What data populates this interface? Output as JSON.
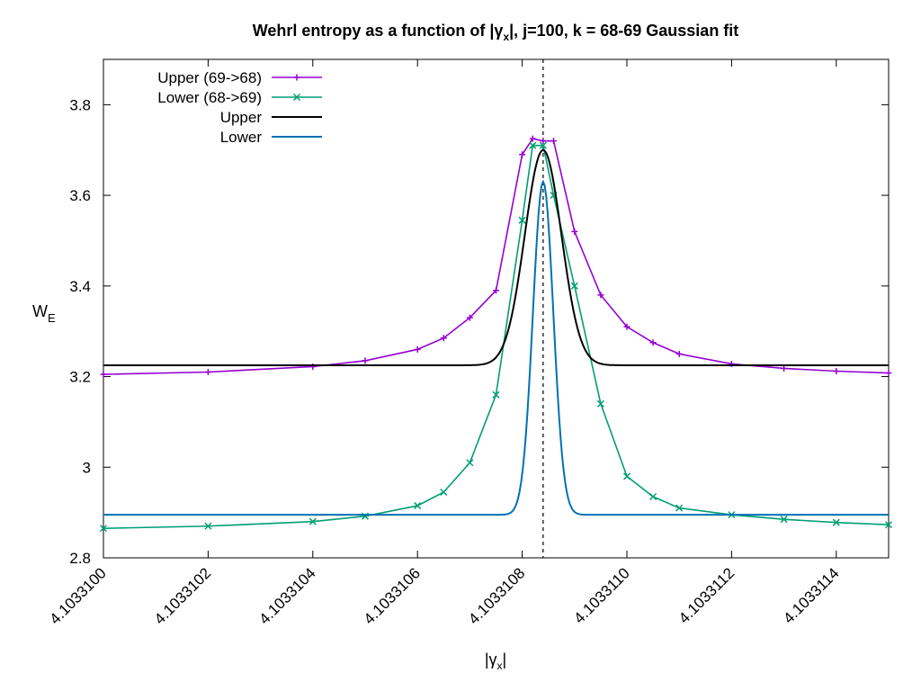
{
  "chart_data": {
    "type": "line",
    "title": {
      "prefix": "Wehrl entropy as a function of |",
      "sym": "γ",
      "sub": "x",
      "suffix": "|,  j=100, k = 68-69 Gaussian fit"
    },
    "xlabel": {
      "prefix": "|",
      "sym": "γ",
      "sub": "x",
      "suffix": "|"
    },
    "ylabel": {
      "main": "W",
      "sub": "E"
    },
    "xlim": [
      4.10331,
      4.1033115
    ],
    "ylim": [
      2.8,
      3.9
    ],
    "x_ticks": [
      4.10331,
      4.1033102,
      4.1033104,
      4.1033106,
      4.1033108,
      4.103311,
      4.1033112,
      4.1033114
    ],
    "x_tick_labels": [
      "4.1033100",
      "4.1033102",
      "4.1033104",
      "4.1033106",
      "4.1033108",
      "4.1033110",
      "4.1033112",
      "4.1033114"
    ],
    "y_ticks": [
      2.8,
      3.0,
      3.2,
      3.4,
      3.6,
      3.8
    ],
    "y_tick_labels": [
      "2.8",
      "3",
      "3.2",
      "3.4",
      "3.6",
      "3.8"
    ],
    "vertical_line": {
      "x": 4.10331084,
      "style": "dashed",
      "color": "#000000"
    },
    "legend": {
      "position": "top-left"
    },
    "grid": false,
    "series": [
      {
        "name": "Upper (69->68)",
        "kind": "points",
        "marker": "plus",
        "color": "#9400d3",
        "x": [
          4.10331,
          4.1033102,
          4.1033104,
          4.1033105,
          4.1033106,
          4.10331065,
          4.1033107,
          4.10331075,
          4.1033108,
          4.10331082,
          4.10331084,
          4.10331086,
          4.1033109,
          4.10331095,
          4.103311,
          4.10331105,
          4.1033111,
          4.1033112,
          4.1033113,
          4.1033114,
          4.1033115
        ],
        "y": [
          3.205,
          3.21,
          3.222,
          3.235,
          3.26,
          3.285,
          3.33,
          3.39,
          3.69,
          3.725,
          3.72,
          3.72,
          3.52,
          3.38,
          3.31,
          3.275,
          3.25,
          3.228,
          3.218,
          3.212,
          3.208
        ]
      },
      {
        "name": "Lower (68->69)",
        "kind": "points",
        "marker": "cross",
        "color": "#009e73",
        "x": [
          4.10331,
          4.1033102,
          4.1033104,
          4.1033105,
          4.1033106,
          4.10331065,
          4.1033107,
          4.10331075,
          4.1033108,
          4.10331082,
          4.10331084,
          4.10331086,
          4.1033109,
          4.10331095,
          4.103311,
          4.10331105,
          4.1033111,
          4.1033112,
          4.1033113,
          4.1033114,
          4.1033115
        ],
        "y": [
          2.865,
          2.87,
          2.88,
          2.892,
          2.915,
          2.945,
          3.01,
          3.16,
          3.545,
          3.71,
          3.71,
          3.6,
          3.4,
          3.14,
          2.98,
          2.935,
          2.91,
          2.895,
          2.885,
          2.878,
          2.873
        ]
      },
      {
        "name": "Upper",
        "kind": "line",
        "color": "#000000",
        "baseline": 3.225,
        "peak": 3.7,
        "center": 4.10331084,
        "sigma": 3.5e-08
      },
      {
        "name": "Lower",
        "kind": "line",
        "color": "#0072b2",
        "baseline": 2.895,
        "peak": 3.63,
        "center": 4.10331084,
        "sigma": 1.95e-08
      }
    ]
  }
}
